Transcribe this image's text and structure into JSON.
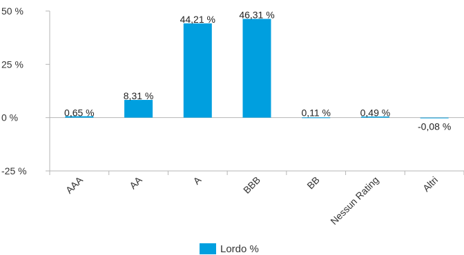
{
  "chart_data": {
    "type": "bar",
    "categories": [
      "AAA",
      "AA",
      "A",
      "BBB",
      "BB",
      "Nessun Rating",
      "Altri"
    ],
    "series": [
      {
        "name": "Lordo %",
        "values": [
          0.65,
          8.31,
          44.21,
          46.31,
          0.11,
          0.49,
          -0.08
        ],
        "labels": [
          "0,65 %",
          "8,31 %",
          "44,21 %",
          "46,31 %",
          "0,11 %",
          "0,49 %",
          "-0,08 %"
        ],
        "color": "#009fdf"
      }
    ],
    "yticks": [
      50,
      25,
      0,
      -25
    ],
    "ytick_labels": [
      "50 %",
      "25 %",
      "0 %",
      "-25 %"
    ],
    "ylim": [
      -25,
      50
    ],
    "grid": false,
    "legend_position": "bottom-center"
  }
}
